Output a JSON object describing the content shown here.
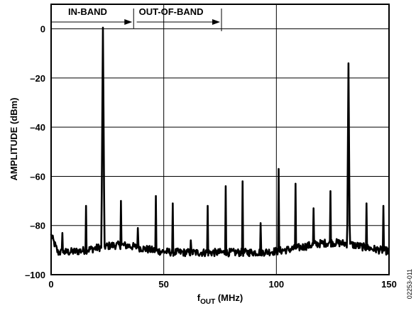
{
  "chart_data": {
    "type": "line",
    "xlabel": "f",
    "xlabel_sub": "OUT",
    "xlabel_unit": " (MHz)",
    "ylabel": "AMPLITUDE (dBm)",
    "xlim": [
      0,
      150
    ],
    "ylim": [
      -100,
      10
    ],
    "xticks": [
      0,
      50,
      100,
      150
    ],
    "yticks": [
      0,
      -20,
      -40,
      -60,
      -80,
      -100
    ],
    "grid": true,
    "noise_floor_dbm": -91,
    "annotations": {
      "in_band": {
        "label": "IN-BAND",
        "from": 0,
        "to": 36
      },
      "out_of_band": {
        "label": "OUT-OF-BAND",
        "from": 38,
        "to": 75
      }
    },
    "figure_code": "02253-011",
    "peaks": [
      {
        "x": 5,
        "y": -83
      },
      {
        "x": 15.5,
        "y": -72
      },
      {
        "x": 23,
        "y": 0.5
      },
      {
        "x": 31,
        "y": -70
      },
      {
        "x": 38.5,
        "y": -81
      },
      {
        "x": 46.5,
        "y": -68
      },
      {
        "x": 54,
        "y": -71
      },
      {
        "x": 62,
        "y": -86
      },
      {
        "x": 69.5,
        "y": -72
      },
      {
        "x": 77.5,
        "y": -64
      },
      {
        "x": 85,
        "y": -62
      },
      {
        "x": 93,
        "y": -79
      },
      {
        "x": 101,
        "y": -57
      },
      {
        "x": 108.5,
        "y": -63
      },
      {
        "x": 116.5,
        "y": -73
      },
      {
        "x": 124,
        "y": -66
      },
      {
        "x": 132,
        "y": -14
      },
      {
        "x": 140,
        "y": -71
      },
      {
        "x": 147.5,
        "y": -72
      }
    ]
  }
}
